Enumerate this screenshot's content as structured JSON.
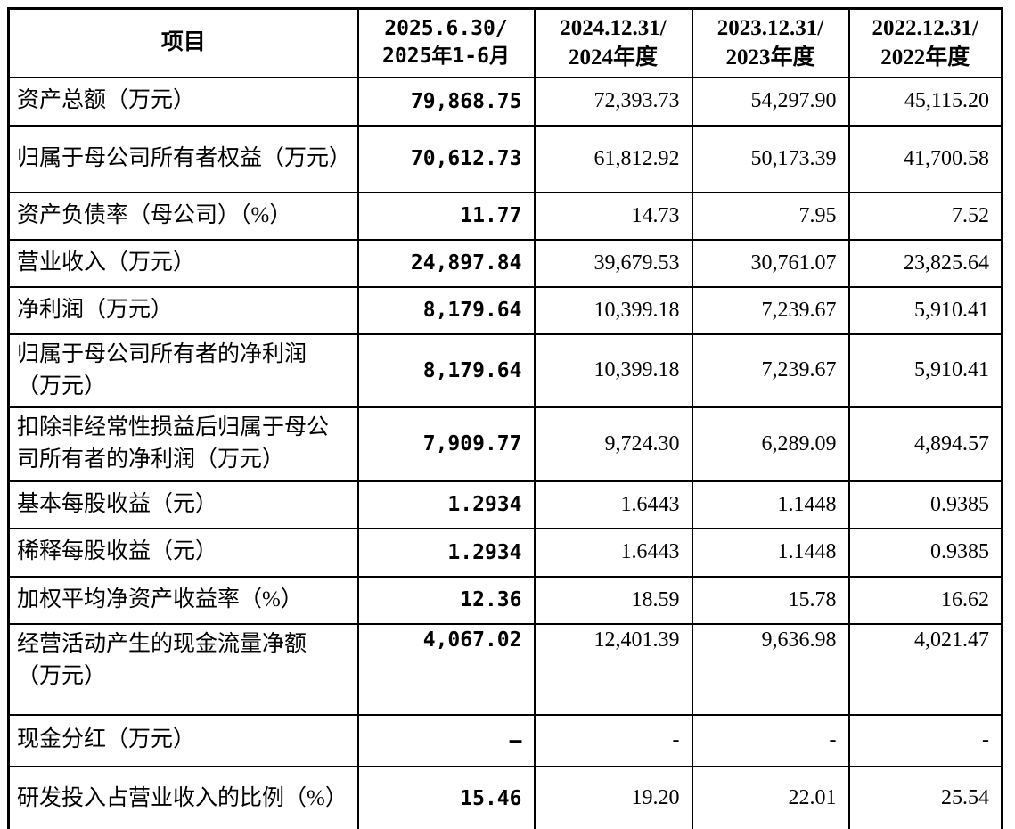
{
  "colors": {
    "background": "#ffffff",
    "border": "#000000",
    "text": "#000000"
  },
  "table": {
    "columns": {
      "item_header": "项目",
      "period_headers": [
        "2025.6.30/\n2025年1-6月",
        "2024.12.31/\n2024年度",
        "2023.12.31/\n2023年度",
        "2022.12.31/\n2022年度"
      ]
    },
    "rows": [
      {
        "label": "资产总额（万元）",
        "current": "79,868.75",
        "values": [
          "72,393.73",
          "54,297.90",
          "45,115.20"
        ]
      },
      {
        "label": "归属于母公司所有者权益（万元）",
        "current": "70,612.73",
        "values": [
          "61,812.92",
          "50,173.39",
          "41,700.58"
        ]
      },
      {
        "label": "资产负债率（母公司）（%）",
        "current": "11.77",
        "values": [
          "14.73",
          "7.95",
          "7.52"
        ]
      },
      {
        "label": "营业收入（万元）",
        "current": "24,897.84",
        "values": [
          "39,679.53",
          "30,761.07",
          "23,825.64"
        ]
      },
      {
        "label": "净利润（万元）",
        "current": "8,179.64",
        "values": [
          "10,399.18",
          "7,239.67",
          "5,910.41"
        ]
      },
      {
        "label": "归属于母公司所有者的净利润（万元）",
        "current": "8,179.64",
        "values": [
          "10,399.18",
          "7,239.67",
          "5,910.41"
        ]
      },
      {
        "label": "扣除非经常性损益后归属于母公司所有者的净利润（万元）",
        "current": "7,909.77",
        "values": [
          "9,724.30",
          "6,289.09",
          "4,894.57"
        ]
      },
      {
        "label": "基本每股收益（元）",
        "current": "1.2934",
        "values": [
          "1.6443",
          "1.1448",
          "0.9385"
        ]
      },
      {
        "label": "稀释每股收益（元）",
        "current": "1.2934",
        "values": [
          "1.6443",
          "1.1448",
          "0.9385"
        ]
      },
      {
        "label": "加权平均净资产收益率（%）",
        "current": "12.36",
        "values": [
          "18.59",
          "15.78",
          "16.62"
        ]
      },
      {
        "label": "经营活动产生的现金流量净额（万元）",
        "current": "4,067.02",
        "values": [
          "12,401.39",
          "9,636.98",
          "4,021.47"
        ]
      },
      {
        "label": "现金分红（万元）",
        "current": "–",
        "values": [
          "-",
          "-",
          "-"
        ]
      },
      {
        "label": "研发投入占营业收入的比例（%）",
        "current": "15.46",
        "values": [
          "19.20",
          "22.01",
          "25.54"
        ]
      }
    ]
  }
}
